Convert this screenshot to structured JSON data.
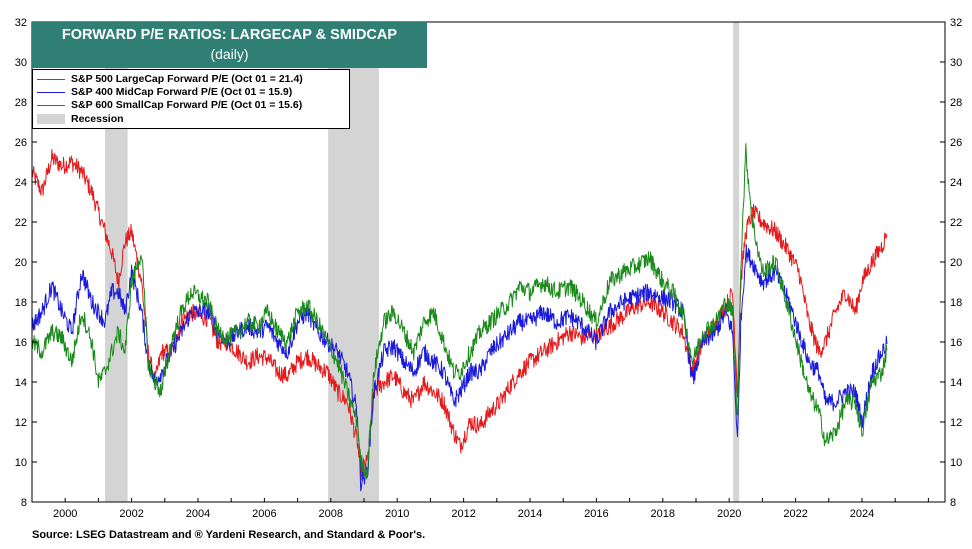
{
  "chart_data": {
    "type": "line",
    "title": "FORWARD P/E RATIOS: LARGECAP & SMIDCAP",
    "subtitle": "(daily)",
    "source": "Source: LSEG Datastream and ® Yardeni Research, and Standard & Poor's.",
    "xlim": [
      1999.0,
      2026.5
    ],
    "ylim": [
      8,
      32
    ],
    "yticks": [
      8,
      10,
      12,
      14,
      16,
      18,
      20,
      22,
      24,
      26,
      28,
      30,
      32
    ],
    "xticks": [
      2000,
      2002,
      2004,
      2006,
      2008,
      2010,
      2012,
      2014,
      2016,
      2018,
      2020,
      2022,
      2024
    ],
    "grid": false,
    "legend_position": "top-left",
    "recessions": [
      {
        "start": 2001.2,
        "end": 2001.88
      },
      {
        "start": 2007.92,
        "end": 2009.45
      },
      {
        "start": 2020.12,
        "end": 2020.3
      }
    ],
    "legend": [
      {
        "label": "S&P 500 LargeCap Forward P/E (Oct 01 = 21.4)",
        "color": "#e41a1c"
      },
      {
        "label": "S&P 400 MidCap Forward P/E (Oct 01 = 15.9)",
        "color": "#1a1adb"
      },
      {
        "label": "S&P 600 SmallCap Forward P/E (Oct 01 = 15.6)",
        "color": "#1a8a1a"
      },
      {
        "label": "Recession",
        "color": "#d4d4d4"
      }
    ],
    "series": [
      {
        "name": "S&P 500 LargeCap Forward P/E",
        "color": "#e41a1c",
        "x": [
          1999.0,
          1999.3,
          1999.6,
          1999.9,
          2000.2,
          2000.5,
          2000.8,
          2001.0,
          2001.2,
          2001.4,
          2001.6,
          2001.8,
          2002.0,
          2002.3,
          2002.5,
          2002.7,
          2002.9,
          2003.2,
          2003.5,
          2003.8,
          2004.0,
          2004.3,
          2004.6,
          2004.9,
          2005.2,
          2005.5,
          2005.8,
          2006.1,
          2006.4,
          2006.7,
          2007.0,
          2007.3,
          2007.6,
          2007.9,
          2008.2,
          2008.5,
          2008.8,
          2008.9,
          2009.1,
          2009.3,
          2009.6,
          2009.9,
          2010.2,
          2010.5,
          2010.8,
          2011.1,
          2011.4,
          2011.7,
          2011.9,
          2012.2,
          2012.5,
          2012.8,
          2013.1,
          2013.4,
          2013.7,
          2014.0,
          2014.4,
          2014.8,
          2015.2,
          2015.6,
          2016.0,
          2016.4,
          2016.8,
          2017.2,
          2017.6,
          2018.0,
          2018.3,
          2018.6,
          2018.9,
          2019.2,
          2019.6,
          2019.9,
          2020.1,
          2020.25,
          2020.35,
          2020.5,
          2020.7,
          2021.0,
          2021.4,
          2021.8,
          2022.1,
          2022.4,
          2022.7,
          2022.9,
          2023.2,
          2023.5,
          2023.8,
          2024.0,
          2024.3,
          2024.6,
          2024.75
        ],
        "values": [
          24.5,
          23.5,
          25.2,
          24.8,
          25.0,
          24.5,
          23.5,
          22.5,
          21.5,
          20.5,
          19.0,
          21.0,
          21.5,
          19.0,
          15.5,
          14.0,
          15.5,
          15.5,
          17.0,
          17.5,
          17.3,
          17.2,
          16.0,
          16.0,
          15.5,
          15.0,
          15.3,
          15.2,
          14.5,
          14.3,
          15.0,
          15.3,
          14.8,
          14.5,
          13.5,
          13.0,
          11.0,
          9.5,
          10.0,
          13.5,
          14.0,
          14.3,
          13.5,
          13.0,
          14.0,
          13.5,
          13.0,
          11.5,
          10.8,
          12.0,
          11.8,
          12.5,
          13.0,
          13.8,
          14.5,
          15.0,
          15.5,
          16.0,
          16.5,
          16.2,
          16.3,
          16.8,
          17.3,
          17.8,
          18.0,
          17.5,
          17.0,
          16.5,
          14.5,
          16.0,
          17.0,
          17.8,
          18.5,
          13.5,
          19.0,
          21.5,
          22.5,
          22.0,
          21.5,
          20.5,
          19.5,
          17.0,
          15.5,
          16.0,
          17.5,
          18.5,
          17.5,
          19.0,
          20.0,
          20.8,
          21.4
        ]
      },
      {
        "name": "S&P 400 MidCap Forward P/E",
        "color": "#1a1adb",
        "x": [
          1999.0,
          1999.3,
          1999.6,
          1999.9,
          2000.2,
          2000.5,
          2000.8,
          2001.0,
          2001.2,
          2001.4,
          2001.6,
          2001.8,
          2002.0,
          2002.3,
          2002.5,
          2002.7,
          2002.9,
          2003.2,
          2003.5,
          2003.8,
          2004.0,
          2004.3,
          2004.6,
          2004.9,
          2005.2,
          2005.5,
          2005.8,
          2006.1,
          2006.4,
          2006.7,
          2007.0,
          2007.3,
          2007.6,
          2007.9,
          2008.2,
          2008.5,
          2008.8,
          2008.9,
          2009.1,
          2009.3,
          2009.6,
          2009.9,
          2010.2,
          2010.5,
          2010.8,
          2011.1,
          2011.4,
          2011.7,
          2011.9,
          2012.2,
          2012.5,
          2012.8,
          2013.1,
          2013.4,
          2013.7,
          2014.0,
          2014.4,
          2014.8,
          2015.2,
          2015.6,
          2016.0,
          2016.4,
          2016.8,
          2017.2,
          2017.6,
          2018.0,
          2018.3,
          2018.6,
          2018.9,
          2019.2,
          2019.6,
          2019.9,
          2020.1,
          2020.25,
          2020.35,
          2020.5,
          2020.7,
          2021.0,
          2021.4,
          2021.8,
          2022.1,
          2022.4,
          2022.7,
          2022.9,
          2023.2,
          2023.5,
          2023.8,
          2024.0,
          2024.3,
          2024.6,
          2024.75
        ],
        "values": [
          16.8,
          17.5,
          18.8,
          17.5,
          16.5,
          19.5,
          18.0,
          17.5,
          17.0,
          18.5,
          18.5,
          17.5,
          19.5,
          17.5,
          15.0,
          14.0,
          14.5,
          15.5,
          16.5,
          17.5,
          17.5,
          17.6,
          16.5,
          16.0,
          16.5,
          16.8,
          16.5,
          16.8,
          16.0,
          15.5,
          17.0,
          17.5,
          16.5,
          16.0,
          15.5,
          14.5,
          12.5,
          9.0,
          9.5,
          13.5,
          15.5,
          15.8,
          15.0,
          14.5,
          15.5,
          15.0,
          14.5,
          13.0,
          13.5,
          14.5,
          14.5,
          15.5,
          16.0,
          16.5,
          17.0,
          17.0,
          17.5,
          17.0,
          17.3,
          16.8,
          16.0,
          17.5,
          18.0,
          18.3,
          18.5,
          18.2,
          18.0,
          17.5,
          14.0,
          16.0,
          16.5,
          17.5,
          16.5,
          11.0,
          17.0,
          20.5,
          20.0,
          19.0,
          19.5,
          18.0,
          16.5,
          15.0,
          14.5,
          13.0,
          13.0,
          13.5,
          13.5,
          12.0,
          14.5,
          15.5,
          15.9
        ]
      },
      {
        "name": "S&P 600 SmallCap Forward P/E",
        "color": "#1a8a1a",
        "x": [
          1999.0,
          1999.3,
          1999.6,
          1999.9,
          2000.2,
          2000.5,
          2000.8,
          2001.0,
          2001.2,
          2001.4,
          2001.6,
          2001.8,
          2002.0,
          2002.3,
          2002.5,
          2002.7,
          2002.9,
          2003.2,
          2003.5,
          2003.8,
          2004.0,
          2004.3,
          2004.6,
          2004.9,
          2005.2,
          2005.5,
          2005.8,
          2006.1,
          2006.4,
          2006.7,
          2007.0,
          2007.3,
          2007.6,
          2007.9,
          2008.2,
          2008.5,
          2008.8,
          2008.9,
          2009.1,
          2009.3,
          2009.6,
          2009.9,
          2010.2,
          2010.5,
          2010.8,
          2011.1,
          2011.4,
          2011.7,
          2011.9,
          2012.2,
          2012.5,
          2012.8,
          2013.1,
          2013.4,
          2013.7,
          2014.0,
          2014.4,
          2014.8,
          2015.2,
          2015.6,
          2016.0,
          2016.4,
          2016.8,
          2017.2,
          2017.6,
          2018.0,
          2018.3,
          2018.6,
          2018.9,
          2019.2,
          2019.6,
          2019.9,
          2020.1,
          2020.25,
          2020.35,
          2020.5,
          2020.7,
          2021.0,
          2021.4,
          2021.8,
          2022.1,
          2022.4,
          2022.7,
          2022.9,
          2023.2,
          2023.5,
          2023.8,
          2024.0,
          2024.3,
          2024.6,
          2024.75
        ],
        "values": [
          16.0,
          15.5,
          16.5,
          16.2,
          15.0,
          17.5,
          16.0,
          14.0,
          14.5,
          15.5,
          16.5,
          15.5,
          19.0,
          20.5,
          15.0,
          14.0,
          13.5,
          16.0,
          17.5,
          18.5,
          18.3,
          18.0,
          16.5,
          16.2,
          16.5,
          17.0,
          16.8,
          17.5,
          16.5,
          16.0,
          17.5,
          17.8,
          17.0,
          16.0,
          15.0,
          13.5,
          12.0,
          10.0,
          9.5,
          14.5,
          17.0,
          17.5,
          16.5,
          15.5,
          17.0,
          17.5,
          16.0,
          14.5,
          14.5,
          15.5,
          16.5,
          17.0,
          17.5,
          18.0,
          18.8,
          18.5,
          19.0,
          18.5,
          18.8,
          18.0,
          17.0,
          19.0,
          19.5,
          19.8,
          20.2,
          19.0,
          18.5,
          17.5,
          15.0,
          16.5,
          17.0,
          18.0,
          17.5,
          12.0,
          20.0,
          25.5,
          22.0,
          19.5,
          20.0,
          17.5,
          15.5,
          13.5,
          12.5,
          11.0,
          11.5,
          13.0,
          13.0,
          11.5,
          14.0,
          14.5,
          15.6
        ]
      }
    ]
  }
}
